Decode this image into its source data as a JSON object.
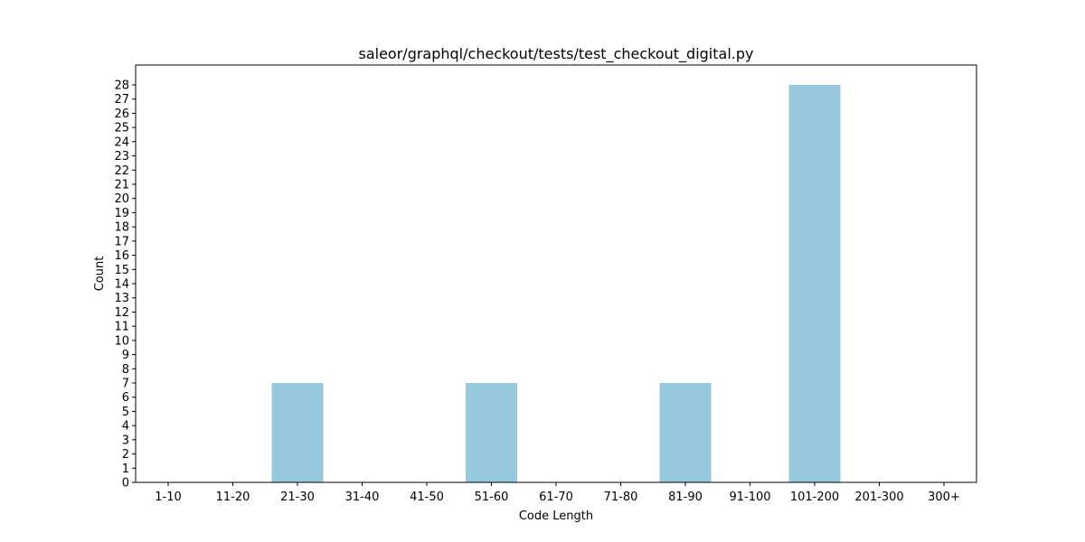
{
  "chart_data": {
    "type": "bar",
    "title": "saleor/graphql/checkout/tests/test_checkout_digital.py",
    "xlabel": "Code Length",
    "ylabel": "Count",
    "categories": [
      "1-10",
      "11-20",
      "21-30",
      "31-40",
      "41-50",
      "51-60",
      "61-70",
      "71-80",
      "81-90",
      "91-100",
      "101-200",
      "201-300",
      "300+"
    ],
    "values": [
      0,
      0,
      7,
      0,
      0,
      7,
      0,
      0,
      7,
      0,
      28,
      0,
      0
    ],
    "ylim": [
      0,
      29.4
    ],
    "yticks": [
      0,
      1,
      2,
      3,
      4,
      5,
      6,
      7,
      8,
      9,
      10,
      11,
      12,
      13,
      14,
      15,
      16,
      17,
      18,
      19,
      20,
      21,
      22,
      23,
      24,
      25,
      26,
      27,
      28
    ],
    "bar_color": "#96c9dc",
    "grid": false,
    "legend": "none"
  }
}
